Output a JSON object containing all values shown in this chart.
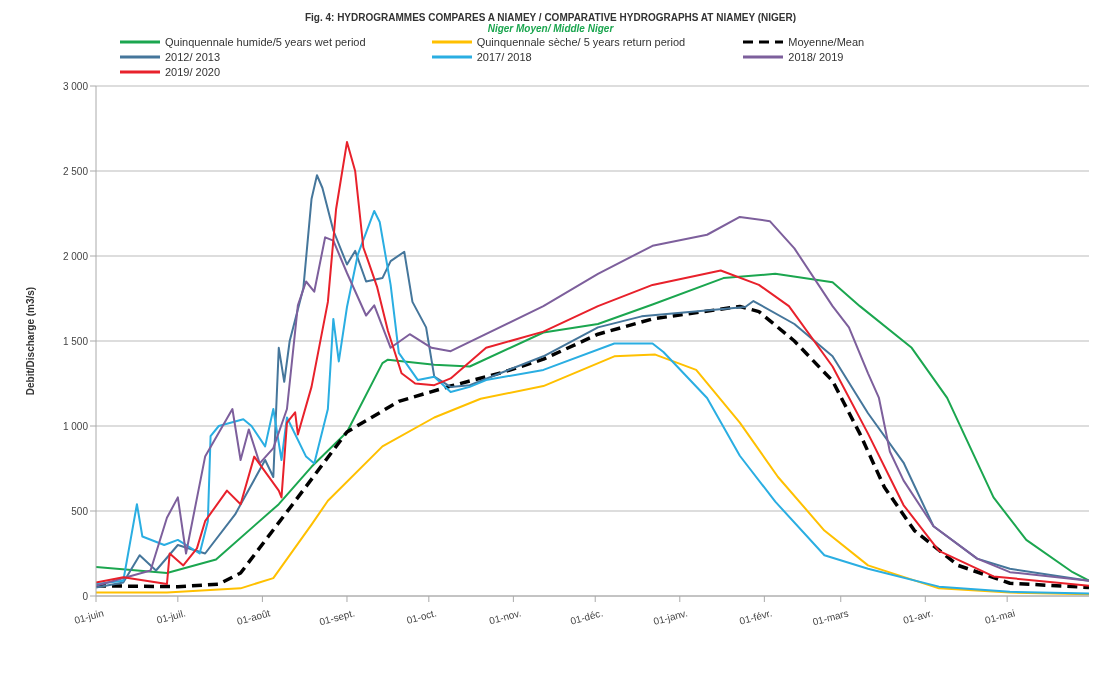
{
  "chart_data": {
    "type": "line",
    "title": "Fig. 4:  HYDROGRAMMES COMPARES  A NIAMEY / COMPARATIVE HYDROGRAPHS AT NIAMEY (NIGER)",
    "subtitle": "Niger Moyen/ Middle Niger",
    "ylabel": "Debit/Discharge  (m3/s)",
    "legend": "top",
    "grid": "y",
    "marker": "none",
    "xlim": [
      "2018-06-01",
      "2019-05-31"
    ],
    "xticks": [
      {
        "value": "2018-06-01",
        "label": "01-juin"
      },
      {
        "value": "2018-07-01",
        "label": "01-juil."
      },
      {
        "value": "2018-08-01",
        "label": "01-août"
      },
      {
        "value": "2018-09-01",
        "label": "01-sept."
      },
      {
        "value": "2018-10-01",
        "label": "01-oct."
      },
      {
        "value": "2018-11-01",
        "label": "01-nov."
      },
      {
        "value": "2018-12-01",
        "label": "01-déc."
      },
      {
        "value": "2019-01-01",
        "label": "01-janv."
      },
      {
        "value": "2019-02-01",
        "label": "01-févr."
      },
      {
        "value": "2019-03-01",
        "label": "01-mars"
      },
      {
        "value": "2019-04-01",
        "label": "01-avr."
      },
      {
        "value": "2019-05-01",
        "label": "01-mai"
      }
    ],
    "ylim": [
      0,
      3000
    ],
    "yticks": [
      0,
      500,
      {
        "value": 1000,
        "label": "1 000"
      },
      {
        "value": 1500,
        "label": "1 500"
      },
      {
        "value": 2000,
        "label": "2 000"
      },
      {
        "value": 2500,
        "label": "2 500"
      },
      {
        "value": 3000,
        "label": "3 000"
      }
    ],
    "series": [
      {
        "name": "Quinquennale humide/5 years wet period",
        "color": "#1ba64f",
        "x": [
          "2018-06-01",
          "2018-06-27",
          "2018-07-15",
          "2018-08-07",
          "2018-08-19",
          "2018-09-01",
          "2018-09-14",
          "2018-09-16",
          "2018-10-03",
          "2018-10-16",
          "2018-11-12",
          "2018-12-02",
          "2018-12-22",
          "2019-01-17",
          "2019-02-05",
          "2019-02-26",
          "2019-03-08",
          "2019-03-27",
          "2019-04-09",
          "2019-04-26",
          "2019-05-08",
          "2019-05-25",
          "2019-05-31"
        ],
        "values": [
          170,
          135,
          215,
          540,
          760,
          965,
          1370,
          1390,
          1360,
          1350,
          1550,
          1600,
          1715,
          1870,
          1895,
          1845,
          1705,
          1460,
          1165,
          580,
          330,
          140,
          90
        ]
      },
      {
        "name": "Quinquennale sèche/ 5 years return period",
        "color": "#ffc000",
        "x": [
          "2018-06-01",
          "2018-06-27",
          "2018-07-24",
          "2018-08-05",
          "2018-08-19",
          "2018-08-25",
          "2018-09-14",
          "2018-10-03",
          "2018-10-20",
          "2018-11-12",
          "2018-12-08",
          "2018-12-23",
          "2019-01-07",
          "2019-01-23",
          "2019-02-06",
          "2019-02-23",
          "2019-03-11",
          "2019-04-06",
          "2019-05-02",
          "2019-05-31"
        ],
        "values": [
          20,
          20,
          45,
          105,
          420,
          560,
          880,
          1050,
          1160,
          1235,
          1410,
          1420,
          1330,
          1020,
          700,
          385,
          180,
          45,
          20,
          10
        ]
      },
      {
        "name": "Moyenne/Mean",
        "color": "#000000",
        "line_style": "dashed",
        "x": [
          "2018-06-01",
          "2018-07-01",
          "2018-07-16",
          "2018-07-24",
          "2018-08-14",
          "2018-09-01",
          "2018-09-20",
          "2018-10-09",
          "2018-10-28",
          "2018-11-12",
          "2018-12-02",
          "2018-12-22",
          "2019-01-23",
          "2019-01-30",
          "2019-02-12",
          "2019-02-26",
          "2019-03-08",
          "2019-03-17",
          "2019-03-28",
          "2019-04-13",
          "2019-05-02",
          "2019-05-31"
        ],
        "values": [
          60,
          55,
          70,
          135,
          580,
          965,
          1145,
          1235,
          1315,
          1393,
          1540,
          1630,
          1703,
          1673,
          1500,
          1265,
          955,
          640,
          385,
          180,
          75,
          50
        ]
      },
      {
        "name": "2012/ 2013",
        "color": "#45769b",
        "x": [
          "2018-06-01",
          "2018-06-11",
          "2018-06-17",
          "2018-06-23",
          "2018-07-01",
          "2018-07-11",
          "2018-07-22",
          "2018-08-02",
          "2018-08-05",
          "2018-08-07",
          "2018-08-09",
          "2018-08-11",
          "2018-08-16",
          "2018-08-19",
          "2018-08-21",
          "2018-08-23",
          "2018-08-27",
          "2018-09-01",
          "2018-09-04",
          "2018-09-08",
          "2018-09-14",
          "2018-09-17",
          "2018-09-22",
          "2018-09-25",
          "2018-09-30",
          "2018-10-03",
          "2018-10-09",
          "2018-10-16",
          "2018-11-12",
          "2018-12-02",
          "2018-12-18",
          "2019-01-25",
          "2019-01-28",
          "2019-02-12",
          "2019-02-26",
          "2019-03-11",
          "2019-03-24",
          "2019-04-04",
          "2019-04-20",
          "2019-05-02",
          "2019-05-31"
        ],
        "values": [
          50,
          80,
          240,
          150,
          300,
          250,
          480,
          800,
          700,
          1460,
          1260,
          1500,
          1810,
          2335,
          2475,
          2400,
          2150,
          1950,
          2030,
          1850,
          1870,
          1970,
          2025,
          1730,
          1580,
          1290,
          1230,
          1240,
          1410,
          1580,
          1645,
          1700,
          1735,
          1600,
          1410,
          1075,
          785,
          410,
          220,
          160,
          90
        ]
      },
      {
        "name": "2017/ 2018",
        "color": "#2aaee2",
        "x": [
          "2018-06-01",
          "2018-06-11",
          "2018-06-16",
          "2018-06-18",
          "2018-06-26",
          "2018-07-01",
          "2018-07-09",
          "2018-07-12",
          "2018-07-13",
          "2018-07-16",
          "2018-07-25",
          "2018-07-28",
          "2018-08-02",
          "2018-08-05",
          "2018-08-08",
          "2018-08-10",
          "2018-08-17",
          "2018-08-20",
          "2018-08-25",
          "2018-08-27",
          "2018-08-29",
          "2018-09-01",
          "2018-09-05",
          "2018-09-11",
          "2018-09-13",
          "2018-09-17",
          "2018-09-20",
          "2018-09-27",
          "2018-10-03",
          "2018-10-09",
          "2018-10-16",
          "2018-10-22",
          "2018-11-12",
          "2018-12-08",
          "2018-12-22",
          "2018-12-26",
          "2019-01-11",
          "2019-01-23",
          "2019-02-05",
          "2019-02-23",
          "2019-03-11",
          "2019-04-06",
          "2019-05-02",
          "2019-05-31"
        ],
        "values": [
          70,
          90,
          540,
          350,
          300,
          330,
          250,
          440,
          940,
          1000,
          1040,
          1000,
          880,
          1100,
          800,
          1050,
          820,
          780,
          1100,
          1630,
          1380,
          1700,
          2010,
          2265,
          2200,
          1830,
          1430,
          1270,
          1290,
          1200,
          1230,
          1270,
          1330,
          1485,
          1485,
          1435,
          1165,
          825,
          555,
          240,
          160,
          55,
          25,
          15
        ]
      },
      {
        "name": "2018/ 2019",
        "color": "#7d5f9c",
        "x": [
          "2018-06-01",
          "2018-06-21",
          "2018-06-27",
          "2018-07-01",
          "2018-07-04",
          "2018-07-11",
          "2018-07-21",
          "2018-07-24",
          "2018-07-27",
          "2018-07-31",
          "2018-08-05",
          "2018-08-10",
          "2018-08-14",
          "2018-08-17",
          "2018-08-20",
          "2018-08-24",
          "2018-08-27",
          "2018-09-01",
          "2018-09-08",
          "2018-09-11",
          "2018-09-17",
          "2018-09-24",
          "2018-10-02",
          "2018-10-09",
          "2018-11-12",
          "2018-12-02",
          "2018-12-22",
          "2019-01-11",
          "2019-01-23",
          "2019-02-03",
          "2019-02-12",
          "2019-02-26",
          "2019-03-04",
          "2019-03-11",
          "2019-03-15",
          "2019-03-19",
          "2019-03-24",
          "2019-04-04",
          "2019-04-20",
          "2019-05-02",
          "2019-05-31"
        ],
        "values": [
          60,
          150,
          460,
          580,
          250,
          820,
          1100,
          800,
          980,
          780,
          870,
          1100,
          1710,
          1850,
          1790,
          2110,
          2090,
          1900,
          1650,
          1710,
          1460,
          1540,
          1460,
          1440,
          1705,
          1895,
          2060,
          2125,
          2230,
          2205,
          2045,
          1705,
          1580,
          1310,
          1165,
          850,
          680,
          410,
          220,
          140,
          90
        ]
      },
      {
        "name": "2019/ 2020",
        "color": "#e8212b",
        "x": [
          "2018-06-01",
          "2018-06-11",
          "2018-06-27",
          "2018-06-28",
          "2018-07-03",
          "2018-07-08",
          "2018-07-11",
          "2018-07-19",
          "2018-07-24",
          "2018-07-29",
          "2018-08-07",
          "2018-08-08",
          "2018-08-10",
          "2018-08-13",
          "2018-08-14",
          "2018-08-19",
          "2018-08-25",
          "2018-08-28",
          "2018-09-01",
          "2018-09-04",
          "2018-09-07",
          "2018-09-09",
          "2018-09-12",
          "2018-09-16",
          "2018-09-21",
          "2018-09-26",
          "2018-10-03",
          "2018-10-09",
          "2018-10-22",
          "2018-11-12",
          "2018-12-02",
          "2018-12-22",
          "2019-01-16",
          "2019-01-30",
          "2019-02-10",
          "2019-02-26",
          "2019-03-11",
          "2019-03-24",
          "2019-04-06",
          "2019-04-26",
          "2019-05-31"
        ],
        "values": [
          80,
          110,
          70,
          250,
          180,
          280,
          440,
          620,
          540,
          820,
          620,
          580,
          1020,
          1080,
          950,
          1230,
          1730,
          2275,
          2670,
          2500,
          2050,
          1960,
          1820,
          1560,
          1310,
          1250,
          1240,
          1280,
          1460,
          1555,
          1705,
          1830,
          1915,
          1830,
          1705,
          1350,
          955,
          535,
          265,
          115,
          60
        ]
      }
    ]
  }
}
